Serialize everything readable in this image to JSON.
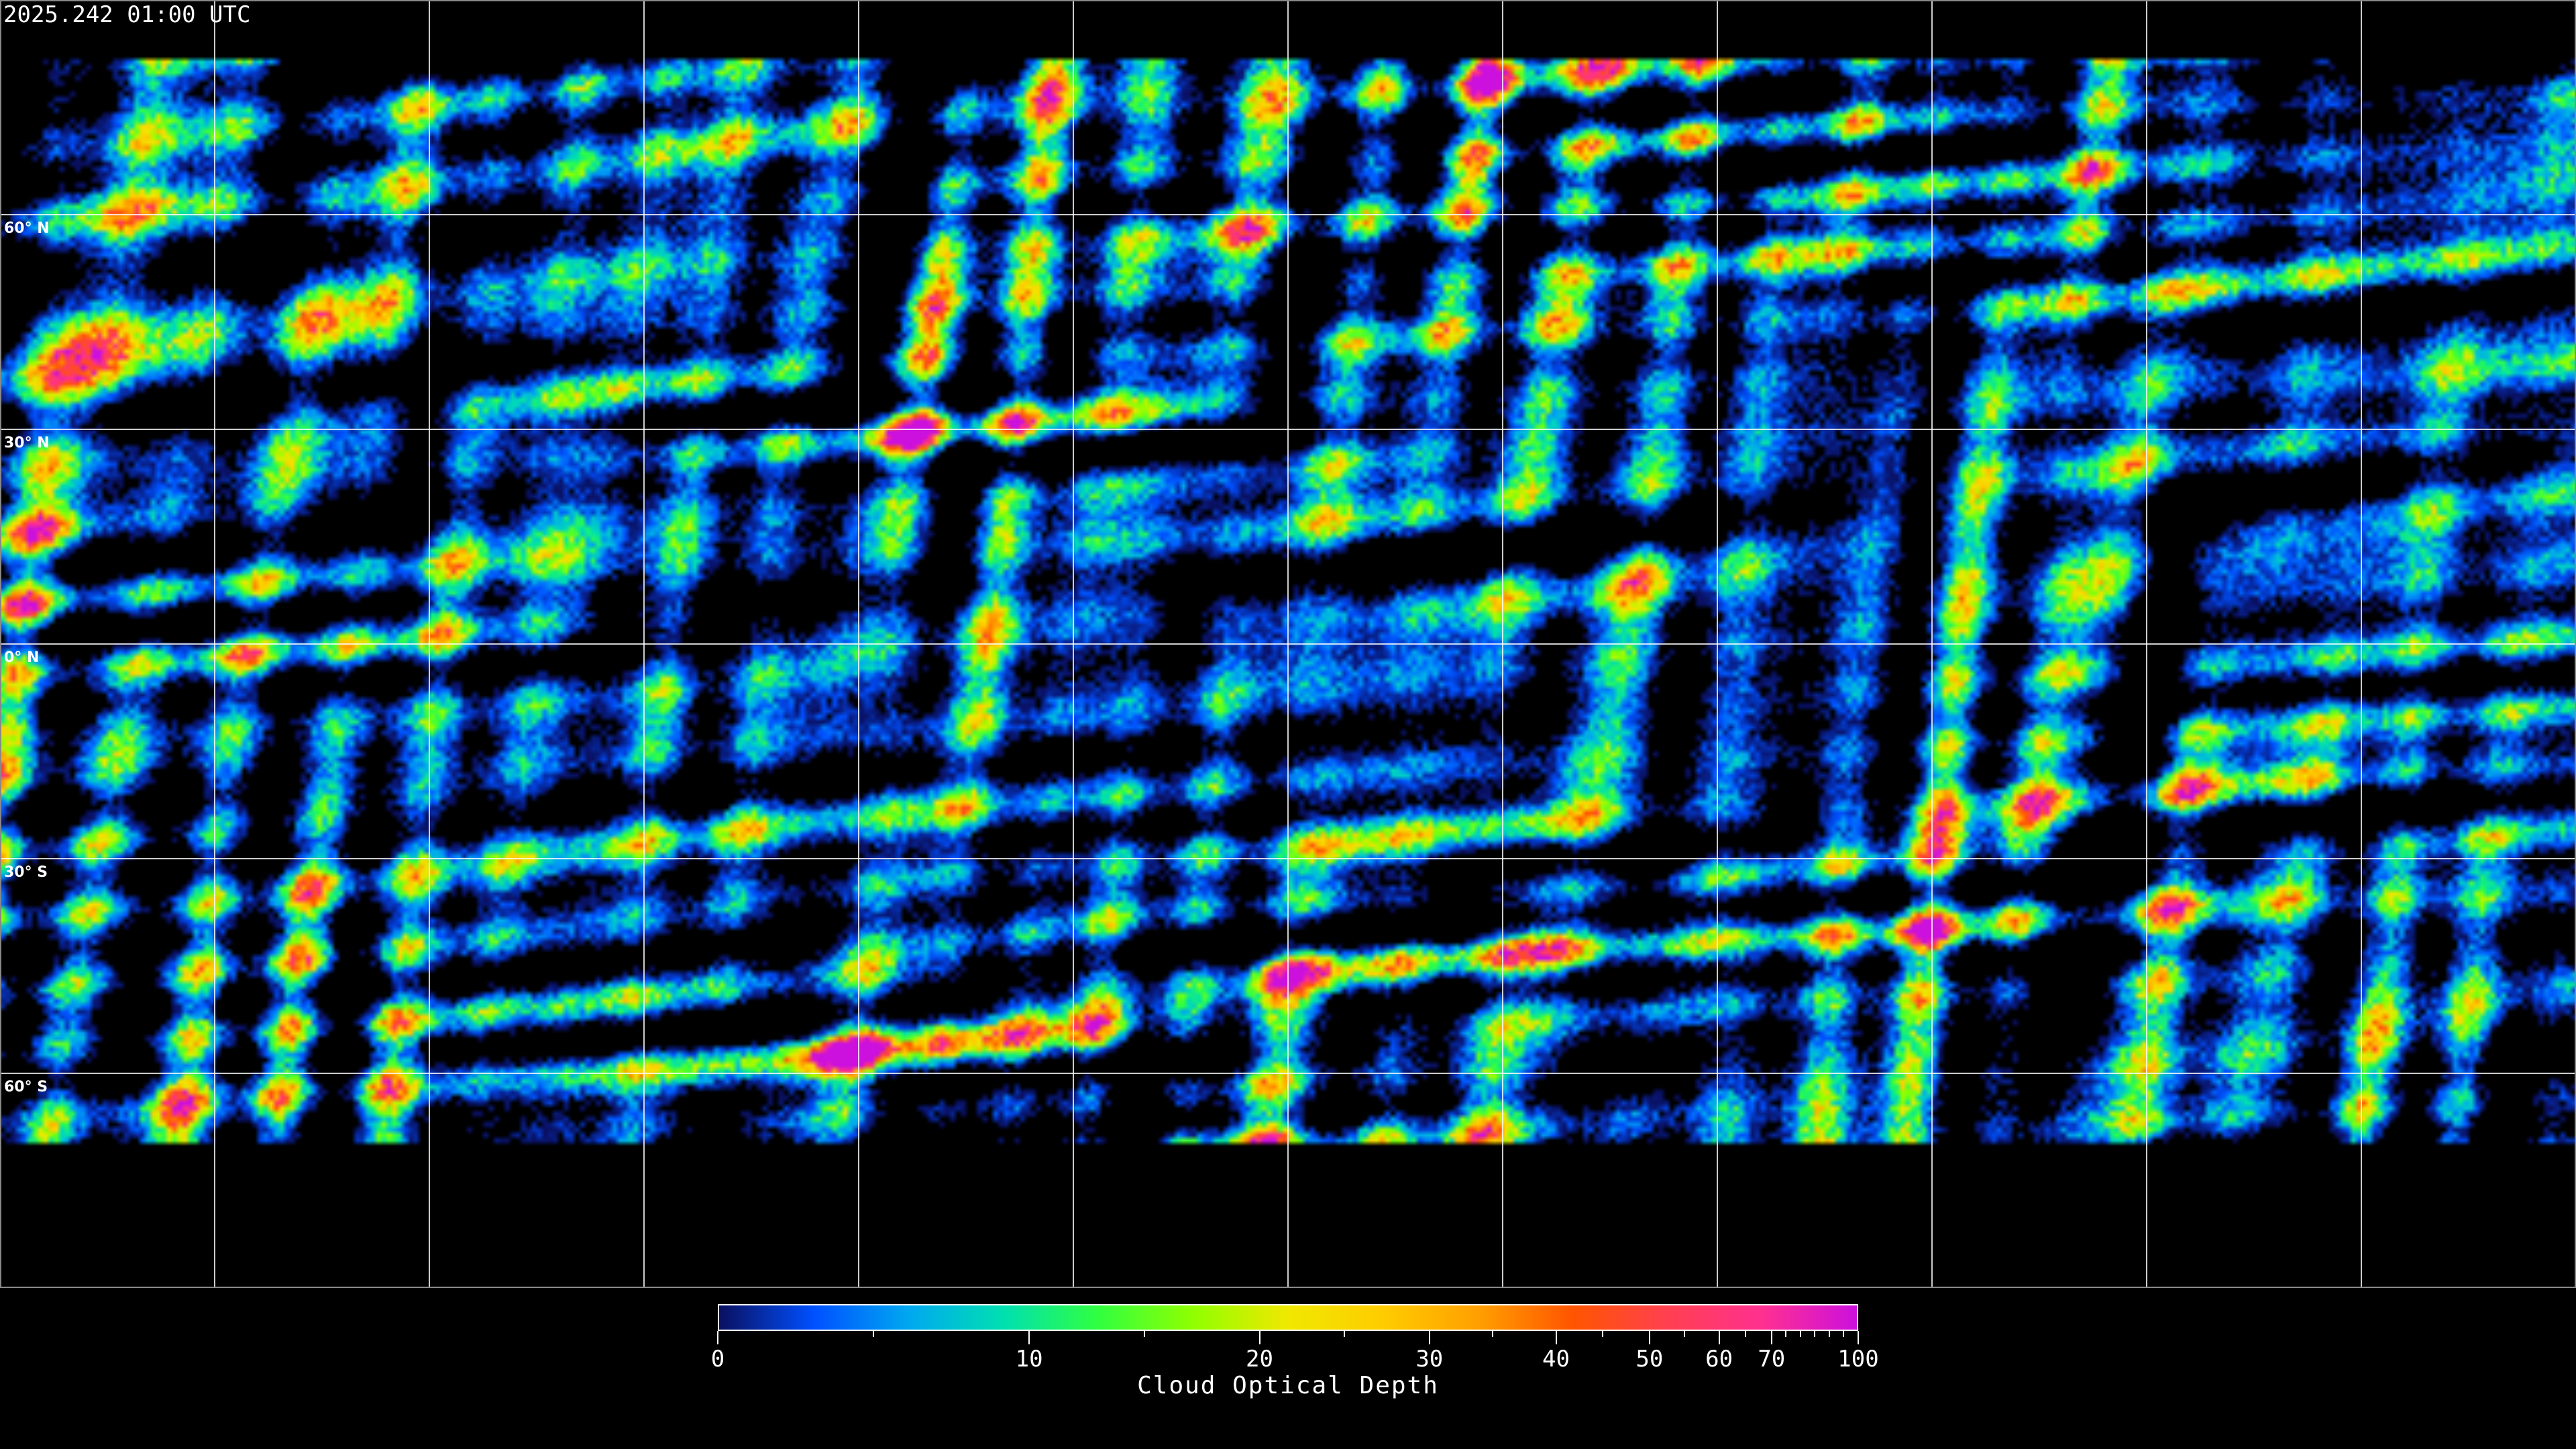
{
  "header": {
    "timestamp": "2025.242 01:00 UTC"
  },
  "map": {
    "projection": "equirectangular",
    "lat_labels": [
      "60° N",
      "30° N",
      "0° N",
      "30° S",
      "60° S"
    ],
    "lat_values": [
      60,
      30,
      0,
      -30,
      -60
    ],
    "lon_grid_values": [
      -150,
      -120,
      -90,
      -60,
      -30,
      0,
      30,
      60,
      90,
      120,
      150
    ],
    "grid_color": "#ffffff",
    "background_color": "#000000"
  },
  "colorbar": {
    "title": "Cloud Optical Depth",
    "range": [
      0,
      100
    ],
    "major_ticks": [
      0,
      10,
      20,
      30,
      40,
      50,
      60,
      70,
      100
    ],
    "major_tick_labels": [
      "0",
      "10",
      "20",
      "30",
      "40",
      "50",
      "60",
      "70",
      "100"
    ],
    "minor_ticks": [
      5,
      15,
      25,
      35,
      45,
      55,
      65,
      75,
      80,
      85,
      90,
      95
    ],
    "colors": [
      "#0a1060",
      "#0050ff",
      "#00a8f0",
      "#00e0b0",
      "#30ff40",
      "#90ff00",
      "#f0e800",
      "#ffcc00",
      "#ffa000",
      "#ff5500",
      "#ff4050",
      "#ff3090",
      "#cc10dd"
    ]
  }
}
